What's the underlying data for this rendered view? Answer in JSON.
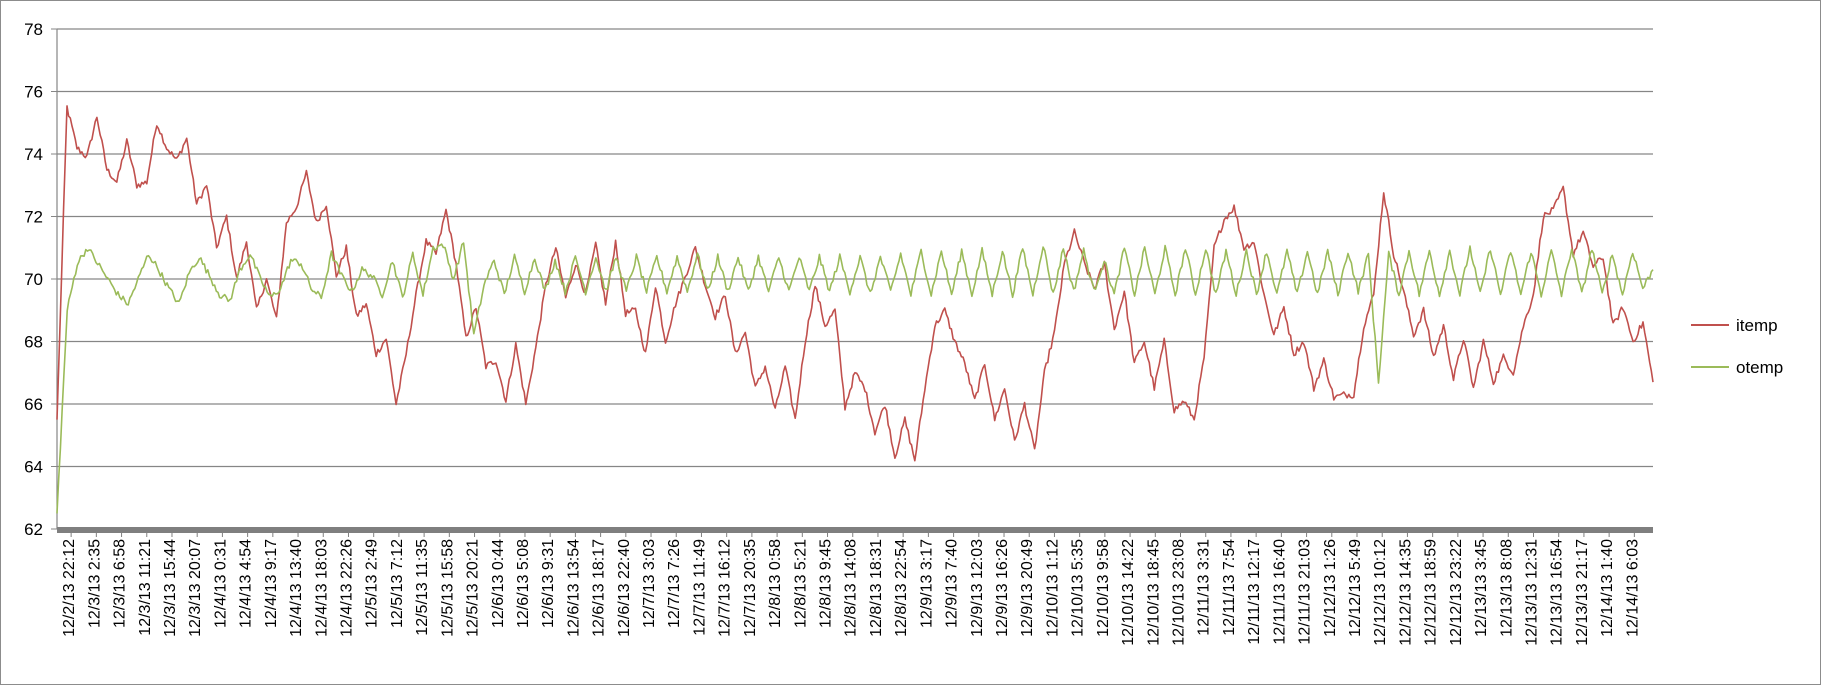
{
  "chart_data": {
    "type": "line",
    "title": "",
    "xlabel": "",
    "ylabel": "",
    "ylim": [
      62,
      78
    ],
    "yticks": [
      62,
      64,
      66,
      68,
      70,
      72,
      74,
      76,
      78
    ],
    "grid": true,
    "legend_position": "right",
    "x_tick_labels": [
      "12/2/13 22:12",
      "12/3/13 2:35",
      "12/3/13 6:58",
      "12/3/13 11:21",
      "12/3/13 15:44",
      "12/3/13 20:07",
      "12/4/13 0:31",
      "12/4/13 4:54",
      "12/4/13 9:17",
      "12/4/13 13:40",
      "12/4/13 18:03",
      "12/4/13 22:26",
      "12/5/13 2:49",
      "12/5/13 7:12",
      "12/5/13 11:35",
      "12/5/13 15:58",
      "12/5/13 20:21",
      "12/6/13 0:44",
      "12/6/13 5:08",
      "12/6/13 9:31",
      "12/6/13 13:54",
      "12/6/13 18:17",
      "12/6/13 22:40",
      "12/7/13 3:03",
      "12/7/13 7:26",
      "12/7/13 11:49",
      "12/7/13 16:12",
      "12/7/13 20:35",
      "12/8/13 0:58",
      "12/8/13 5:21",
      "12/8/13 9:45",
      "12/8/13 14:08",
      "12/8/13 18:31",
      "12/8/13 22:54",
      "12/9/13 3:17",
      "12/9/13 7:40",
      "12/9/13 12:03",
      "12/9/13 16:26",
      "12/9/13 20:49",
      "12/10/13 1:12",
      "12/10/13 5:35",
      "12/10/13 9:58",
      "12/10/13 14:22",
      "12/10/13 18:45",
      "12/10/13 23:08",
      "12/11/13 3:31",
      "12/11/13 7:54",
      "12/11/13 12:17",
      "12/11/13 16:40",
      "12/11/13 21:03",
      "12/12/13 1:26",
      "12/12/13 5:49",
      "12/12/13 10:12",
      "12/12/13 14:35",
      "12/12/13 18:59",
      "12/12/13 23:22",
      "12/13/13 3:45",
      "12/13/13 8:08",
      "12/13/13 12:31",
      "12/13/13 16:54",
      "12/13/13 21:17",
      "12/14/13 1:40",
      "12/14/13 6:03"
    ],
    "series": [
      {
        "name": "itemp",
        "color": "#c0504d",
        "values": [
          65.5,
          75.5,
          74.2,
          73.9,
          75.2,
          73.5,
          73.1,
          74.4,
          73.0,
          73.1,
          75.0,
          74.2,
          73.8,
          74.5,
          72.4,
          73.0,
          71.0,
          72.0,
          70.0,
          71.2,
          69.0,
          70.0,
          68.7,
          71.8,
          72.3,
          73.4,
          71.8,
          72.4,
          70.1,
          71.0,
          68.8,
          69.2,
          67.6,
          68.1,
          66.0,
          67.6,
          69.5,
          71.2,
          70.8,
          72.2,
          70.5,
          68.1,
          69.1,
          67.2,
          67.4,
          66.1,
          67.9,
          66.0,
          67.8,
          69.8,
          71.0,
          69.4,
          70.5,
          69.5,
          71.1,
          69.2,
          71.2,
          68.9,
          69.0,
          67.6,
          69.8,
          68.0,
          69.2,
          70.1,
          71.0,
          69.8,
          68.8,
          69.5,
          67.6,
          68.3,
          66.5,
          67.2,
          65.8,
          67.2,
          65.5,
          68.0,
          69.8,
          68.5,
          69.0,
          65.9,
          67.0,
          66.5,
          65.1,
          66.0,
          64.3,
          65.5,
          64.2,
          66.5,
          68.5,
          69.0,
          68.0,
          67.3,
          66.1,
          67.3,
          65.5,
          66.5,
          64.8,
          66.0,
          64.5,
          67.0,
          68.3,
          70.5,
          71.5,
          70.5,
          69.7,
          70.5,
          68.4,
          69.6,
          67.3,
          68.0,
          66.5,
          68.0,
          65.8,
          66.1,
          65.5,
          67.5,
          71.0,
          71.9,
          72.3,
          71.0,
          71.2,
          69.5,
          68.2,
          69.1,
          67.6,
          68.0,
          66.5,
          67.4,
          66.2,
          66.3,
          66.3,
          68.5,
          69.5,
          72.8,
          70.8,
          69.6,
          68.2,
          69.0,
          67.5,
          68.5,
          66.8,
          68.1,
          66.5,
          68.0,
          66.7,
          67.5,
          67.0,
          68.5,
          69.5,
          72.0,
          72.2,
          72.9,
          70.8,
          71.5,
          70.4,
          70.7,
          68.5,
          69.1,
          68.0,
          68.6,
          66.7
        ]
      },
      {
        "name": "otemp",
        "color": "#9bbb59",
        "values": [
          62.5,
          69.0,
          70.5,
          71.0,
          70.5,
          70.0,
          69.5,
          69.2,
          70.0,
          70.8,
          70.3,
          69.7,
          69.2,
          70.2,
          70.7,
          70.1,
          69.5,
          69.3,
          70.3,
          70.8,
          70.0,
          69.4,
          69.7,
          70.6,
          70.5,
          69.7,
          69.4,
          70.8,
          70.1,
          69.6,
          70.3,
          70.1,
          69.5,
          70.6,
          69.4,
          70.8,
          69.5,
          71.0,
          71.1,
          70.0,
          71.2,
          68.2,
          69.8,
          70.6,
          69.5,
          70.7,
          69.6,
          70.7,
          69.6,
          70.6,
          69.6,
          70.7,
          69.6,
          70.7,
          69.6,
          70.7,
          69.6,
          70.7,
          69.6,
          70.7,
          69.6,
          70.7,
          69.6,
          70.8,
          69.6,
          70.7,
          69.6,
          70.7,
          69.6,
          70.7,
          69.6,
          70.7,
          69.6,
          70.7,
          69.6,
          70.7,
          69.6,
          70.7,
          69.6,
          70.7,
          69.5,
          70.7,
          69.6,
          70.8,
          69.5,
          70.9,
          69.5,
          70.9,
          69.5,
          70.9,
          69.5,
          70.9,
          69.5,
          70.9,
          69.5,
          71.0,
          69.5,
          71.1,
          69.5,
          71.0,
          69.6,
          70.9,
          69.6,
          70.6,
          69.5,
          71.0,
          69.5,
          71.0,
          69.5,
          71.0,
          69.5,
          71.0,
          69.5,
          71.0,
          69.5,
          70.9,
          69.5,
          70.9,
          69.5,
          70.9,
          69.5,
          70.9,
          69.5,
          70.9,
          69.5,
          70.9,
          69.5,
          70.9,
          69.6,
          70.8,
          66.7,
          70.8,
          69.5,
          70.9,
          69.5,
          70.9,
          69.5,
          70.9,
          69.5,
          71.0,
          69.5,
          71.0,
          69.5,
          70.9,
          69.5,
          70.9,
          69.5,
          70.9,
          69.5,
          71.0,
          69.5,
          71.0,
          69.5,
          70.8,
          69.5,
          70.9,
          69.7,
          70.3
        ]
      }
    ]
  }
}
